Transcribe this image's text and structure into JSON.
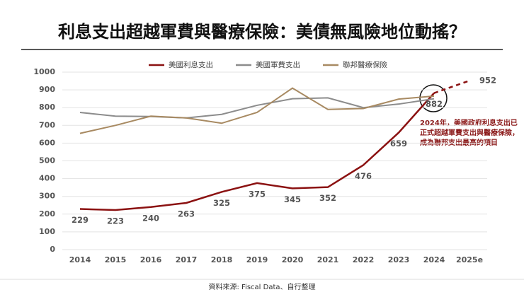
{
  "chart_data": {
    "type": "line",
    "title": "利息支出超越軍費與醫療保險：美債無風險地位動搖？",
    "categories": [
      "2014",
      "2015",
      "2016",
      "2017",
      "2018",
      "2019",
      "2020",
      "2021",
      "2022",
      "2023",
      "2024",
      "2025e"
    ],
    "series": [
      {
        "name": "美國利息支出",
        "color": "#8b1111",
        "values": [
          229,
          223,
          240,
          263,
          325,
          375,
          345,
          352,
          476,
          659,
          882,
          952
        ],
        "data_labels": true,
        "dashed_last": true
      },
      {
        "name": "美國軍費支出",
        "color": "#8c8c8c",
        "values": [
          773,
          752,
          750,
          742,
          762,
          813,
          850,
          855,
          800,
          820,
          850,
          null
        ]
      },
      {
        "name": "聯邦醫療保險",
        "color": "#a88a62",
        "values": [
          655,
          700,
          752,
          742,
          712,
          773,
          910,
          790,
          795,
          848,
          865,
          null
        ]
      }
    ],
    "ylim": [
      0,
      1000
    ],
    "yticks": [
      0,
      100,
      200,
      300,
      400,
      500,
      600,
      700,
      800,
      900,
      1000
    ],
    "grid": true,
    "annotation": "2024年，美國政府利息支出已正式超越軍費支出與醫療保險，成為聯邦支出最高的項目",
    "source": "資料來源: Fiscal Data、自行整理"
  }
}
